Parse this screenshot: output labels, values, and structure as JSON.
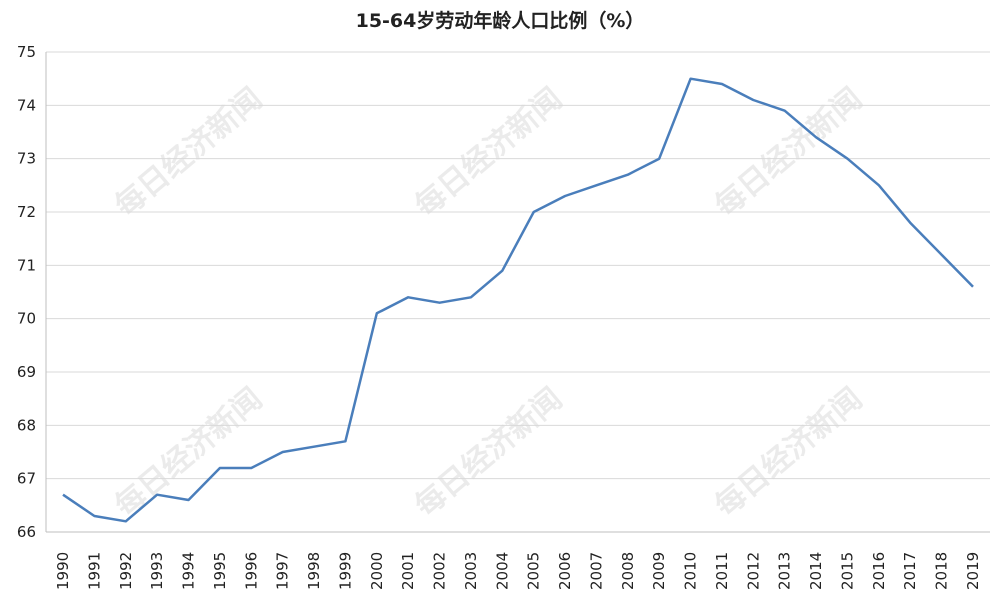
{
  "chart_data": {
    "type": "line",
    "title": "15-64岁劳动年龄人口比例（%）",
    "xlabel": "",
    "ylabel": "",
    "ylim": [
      66,
      75
    ],
    "yticks": [
      66,
      67,
      68,
      69,
      70,
      71,
      72,
      73,
      74,
      75
    ],
    "grid": true,
    "legend": "none",
    "categories": [
      "1990",
      "1991",
      "1992",
      "1993",
      "1994",
      "1995",
      "1996",
      "1997",
      "1998",
      "1999",
      "2000",
      "2001",
      "2002",
      "2003",
      "2004",
      "2005",
      "2006",
      "2007",
      "2008",
      "2009",
      "2010",
      "2011",
      "2012",
      "2013",
      "2014",
      "2015",
      "2016",
      "2017",
      "2018",
      "2019"
    ],
    "series": [
      {
        "color": "#4a7ebb",
        "values": [
          66.7,
          66.3,
          66.2,
          66.7,
          66.6,
          67.2,
          67.2,
          67.5,
          67.6,
          67.7,
          70.1,
          70.4,
          70.3,
          70.4,
          70.9,
          72.0,
          72.3,
          72.5,
          72.7,
          73.0,
          74.5,
          74.4,
          74.1,
          73.9,
          73.4,
          73.0,
          72.5,
          71.8,
          71.2,
          70.6
        ]
      }
    ]
  },
  "watermark": {
    "text": "每日经济新闻",
    "color": "#c8c8c8"
  },
  "colors": {
    "grid": "#d9d9d9",
    "axis": "#bfbfbf",
    "line": "#4a7ebb"
  }
}
